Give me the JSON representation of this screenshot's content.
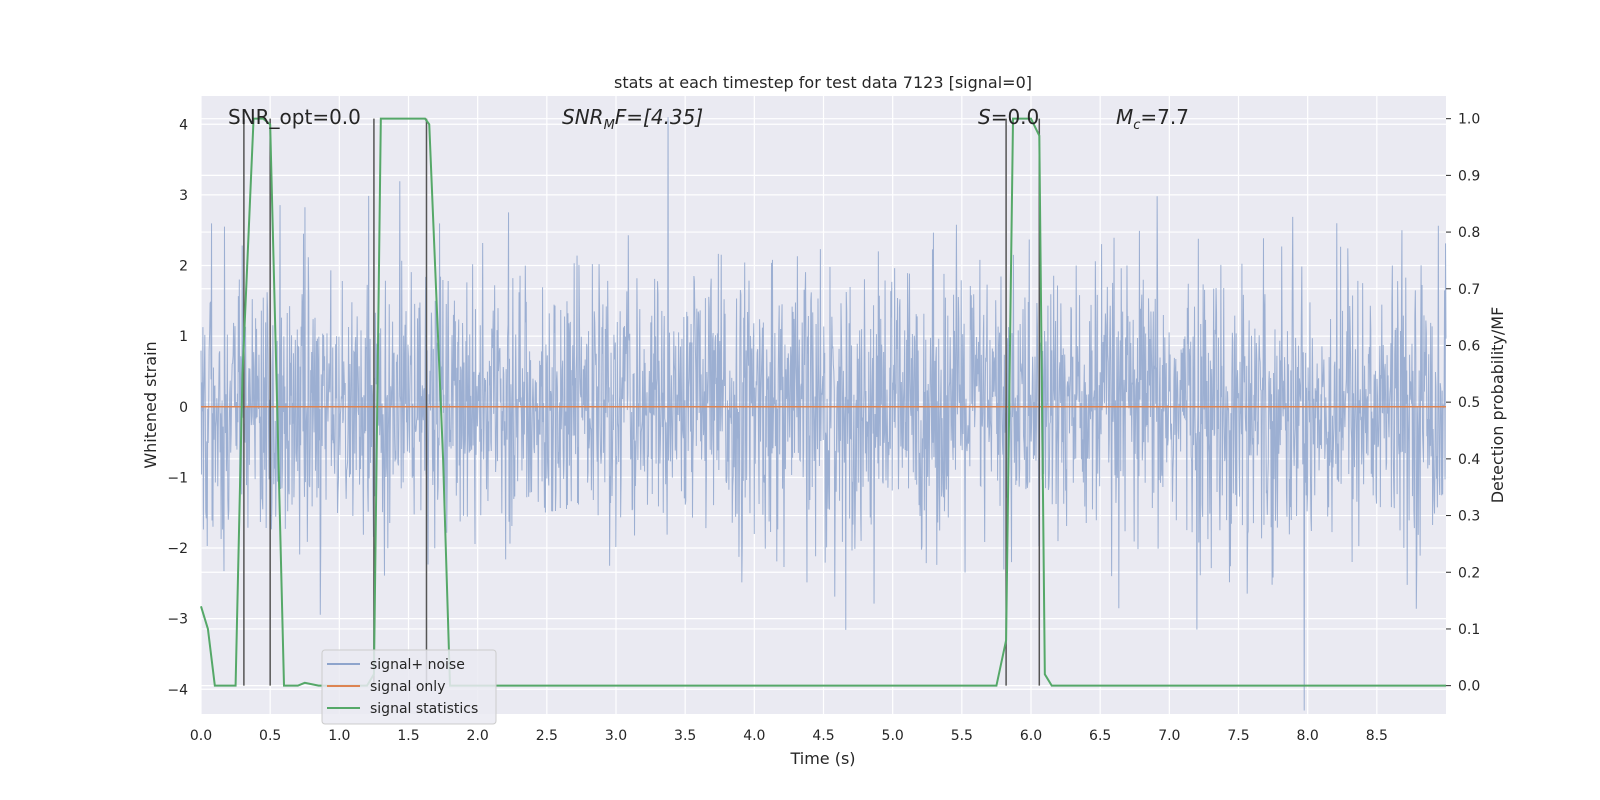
{
  "chart_data": {
    "type": "line",
    "title": "stats at each timestep for test data 7123 [signal=0]",
    "xlabel": "Time (s)",
    "ylabel": "Whitened strain",
    "ylabel_right": "Detection probability/MF",
    "xlim": [
      0,
      9.0
    ],
    "ylim": [
      -4.35,
      4.4
    ],
    "ylim_right": [
      -0.05,
      1.04
    ],
    "x_ticks": [
      "0.0",
      "0.5",
      "1.0",
      "1.5",
      "2.0",
      "2.5",
      "3.0",
      "3.5",
      "4.0",
      "4.5",
      "5.0",
      "5.5",
      "6.0",
      "6.5",
      "7.0",
      "7.5",
      "8.0",
      "8.5"
    ],
    "y_ticks": [
      {
        "v": -4,
        "label": "−4"
      },
      {
        "v": -3,
        "label": "−3"
      },
      {
        "v": -2,
        "label": "−2"
      },
      {
        "v": -1,
        "label": "−1"
      },
      {
        "v": 0,
        "label": "0"
      },
      {
        "v": 1,
        "label": "1"
      },
      {
        "v": 2,
        "label": "2"
      },
      {
        "v": 3,
        "label": "3"
      },
      {
        "v": 4,
        "label": "4"
      }
    ],
    "y2_ticks": [
      "0.0",
      "0.1",
      "0.2",
      "0.3",
      "0.4",
      "0.5",
      "0.6",
      "0.7",
      "0.8",
      "0.9",
      "1.0"
    ],
    "grid": true,
    "annotations": {
      "snr_opt": "SNR_opt=0.0",
      "snr_mf_prefix": "SNR",
      "snr_mf_sub": "M",
      "snr_mf_suffix": "F=[4.35]",
      "s_prefix": "S",
      "s_suffix": "=0.0",
      "mc_prefix": "M",
      "mc_sub": "c",
      "mc_suffix": "=7.7"
    },
    "legend_position": "lower-left",
    "series": [
      {
        "name": "signal+ noise",
        "color": "#8ea4cc",
        "description": "noisy whitened strain, roughly within ±2 with spikes to about ±4"
      },
      {
        "name": "signal only",
        "color": "#dd8452",
        "y_constant": 0
      },
      {
        "name": "signal statistics",
        "color": "#55a868",
        "axis": "right",
        "x": [
          0.0,
          0.05,
          0.1,
          0.25,
          0.3,
          0.38,
          0.45,
          0.5,
          0.55,
          0.6,
          0.7,
          0.75,
          0.85,
          1.2,
          1.25,
          1.3,
          1.62,
          1.65,
          1.75,
          1.8,
          5.55,
          5.75,
          5.82,
          5.87,
          6.0,
          6.06,
          6.1,
          6.15,
          6.2,
          9.0
        ],
        "values": [
          0.14,
          0.1,
          0.0,
          0.0,
          0.55,
          1.0,
          1.0,
          0.99,
          0.5,
          0.0,
          0.0,
          0.005,
          0.0,
          0.0,
          0.02,
          1.0,
          1.0,
          0.99,
          0.4,
          0.0,
          0.0,
          0.0,
          0.08,
          1.0,
          1.0,
          0.97,
          0.02,
          0.0,
          0.0,
          0.0
        ]
      }
    ],
    "vertical_lines": [
      0.31,
      0.5,
      1.25,
      1.63,
      5.82,
      6.06
    ]
  }
}
